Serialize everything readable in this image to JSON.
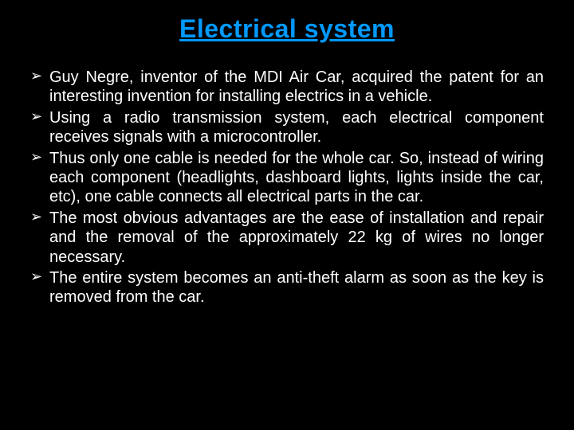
{
  "slide": {
    "title": "Electrical system",
    "title_color": "#0099ff",
    "background_color": "#000000",
    "text_color": "#ffffff",
    "title_fontsize": 32,
    "body_fontsize": 20,
    "bullet_glyph": "➢",
    "bullets": [
      "Guy Negre, inventor of the MDI Air Car, acquired the patent for an interesting invention for installing electrics in a vehicle.",
      "Using a radio transmission system, each electrical component receives signals with a microcontroller.",
      "Thus only one cable is needed for the whole car. So, instead of wiring each component (headlights, dashboard lights, lights inside the car, etc), one cable connects all electrical parts in the car.",
      "The most obvious advantages are the ease of installation and repair and the removal of the approximately 22 kg of wires no longer necessary.",
      "The entire system becomes an anti-theft alarm as soon as the key is removed from the car."
    ]
  }
}
